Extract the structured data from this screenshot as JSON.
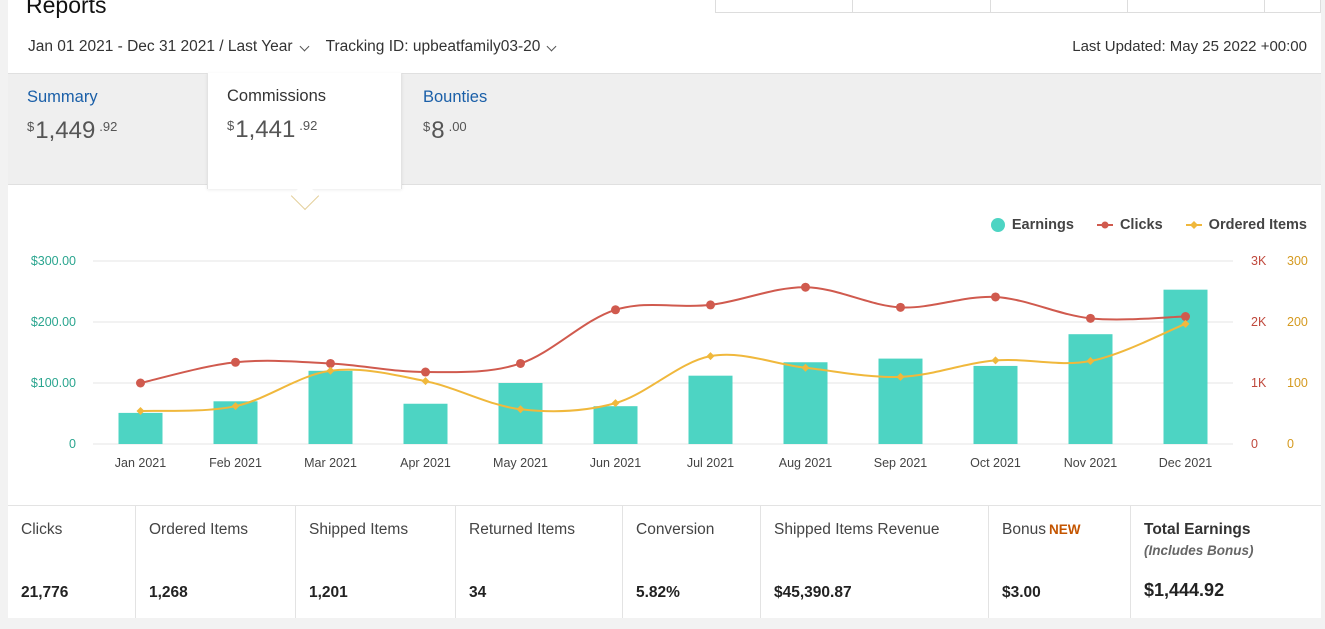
{
  "page": {
    "title": "Reports"
  },
  "filters": {
    "date_range": "Jan 01 2021 - Dec 31 2021 / Last Year",
    "tracking_id": "Tracking ID: upbeatfamily03-20",
    "last_updated": "Last Updated: May 25 2022 +00:00"
  },
  "tabs": [
    {
      "label": "Summary",
      "currency": "$",
      "whole": "1,449",
      "cents": ".92",
      "active": false
    },
    {
      "label": "Commissions",
      "currency": "$",
      "whole": "1,441",
      "cents": ".92",
      "active": true
    },
    {
      "label": "Bounties",
      "currency": "$",
      "whole": "8",
      "cents": ".00",
      "active": false
    }
  ],
  "legend": [
    {
      "label": "Earnings",
      "color": "#4dd4c3"
    },
    {
      "label": "Clicks",
      "color": "#d05a4e"
    },
    {
      "label": "Ordered Items",
      "color": "#f0b83c"
    }
  ],
  "chart_data": {
    "type": "bar",
    "categories": [
      "Jan 2021",
      "Feb 2021",
      "Mar 2021",
      "Apr 2021",
      "May 2021",
      "Jun 2021",
      "Jul 2021",
      "Aug 2021",
      "Sep 2021",
      "Oct 2021",
      "Nov 2021",
      "Dec 2021"
    ],
    "series": [
      {
        "name": "Earnings",
        "type": "bar",
        "axis": "left",
        "color": "#4dd4c3",
        "values": [
          51,
          70,
          120,
          66,
          100,
          62,
          112,
          134,
          140,
          128,
          180,
          253
        ]
      },
      {
        "name": "Clicks",
        "type": "line",
        "axis": "right1",
        "color": "#d05a4e",
        "values": [
          1000,
          1340,
          1320,
          1180,
          1320,
          2200,
          2280,
          2570,
          2240,
          2410,
          2060,
          2090
        ]
      },
      {
        "name": "Ordered Items",
        "type": "line",
        "axis": "right2",
        "color": "#f0b83c",
        "values": [
          54,
          62,
          120,
          103,
          57,
          67,
          144,
          125,
          110,
          137,
          136,
          197
        ]
      }
    ],
    "y_left": {
      "ticks": [
        "$300.00",
        "$200.00",
        "$100.00",
        "0"
      ],
      "range": [
        0,
        300
      ]
    },
    "y_right1": {
      "ticks": [
        "3K",
        "2K",
        "1K",
        "0"
      ],
      "range": [
        0,
        3000
      ]
    },
    "y_right2": {
      "ticks": [
        "300",
        "200",
        "100",
        "0"
      ],
      "range": [
        0,
        300
      ]
    },
    "grid": true,
    "legend_position": "top-right"
  },
  "stats": [
    {
      "label": "Clicks",
      "value": "21,776"
    },
    {
      "label": "Ordered Items",
      "value": "1,268"
    },
    {
      "label": "Shipped Items",
      "value": "1,201"
    },
    {
      "label": "Returned Items",
      "value": "34"
    },
    {
      "label": "Conversion",
      "value": "5.82%"
    },
    {
      "label": "Shipped Items Revenue",
      "value": "$45,390.87"
    },
    {
      "label": "Bonus",
      "badge": "NEW",
      "value": "$3.00"
    }
  ],
  "total": {
    "label": "Total Earnings",
    "sub": "(Includes Bonus)",
    "value": "$1,444.92"
  }
}
